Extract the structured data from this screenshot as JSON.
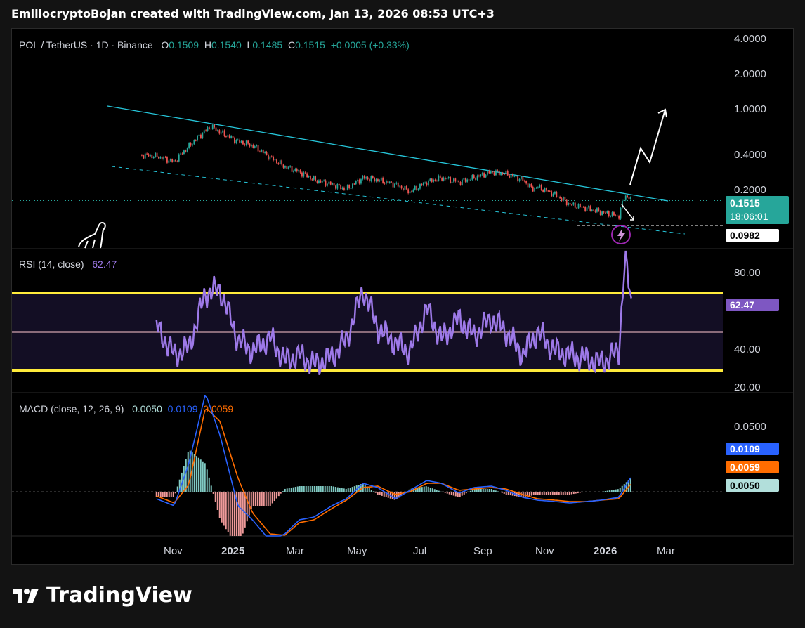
{
  "header": {
    "credit": "EmiliocryptoBojan created with TradingView.com, Jan 13, 2026 08:53 UTC+3"
  },
  "price_panel": {
    "symbol": "POL / TetherUS · 1D · Binance",
    "o_label": "O",
    "o": "0.1509",
    "h_label": "H",
    "h": "0.1540",
    "l_label": "L",
    "l": "0.1485",
    "c_label": "C",
    "c": "0.1515",
    "change": "+0.0005 (+0.33%)",
    "axis_ticks": [
      "4.0000",
      "2.0000",
      "1.0000",
      "0.4000",
      "0.2000"
    ],
    "last_price": "0.1515",
    "countdown": "18:06:01",
    "marker_price": "0.0982"
  },
  "rsi_panel": {
    "title": "RSI (14, close)",
    "value": "62.47",
    "axis_ticks": [
      "80.00",
      "40.00",
      "20.00"
    ],
    "badge": "62.47"
  },
  "macd_panel": {
    "title": "MACD (close, 12, 26, 9)",
    "hist": "0.0050",
    "macd": "0.0109",
    "signal": "0.0059",
    "axis_ticks": [
      "0.0500"
    ],
    "badges": [
      "0.0109",
      "0.0059",
      "0.0050"
    ]
  },
  "time_axis": [
    "Nov",
    "2025",
    "Mar",
    "May",
    "Jul",
    "Sep",
    "Nov",
    "2026",
    "Mar"
  ],
  "brand": {
    "name": "TradingView"
  },
  "colors": {
    "up": "#26a69a",
    "down": "#ef5350",
    "rsi": "#9d79e8",
    "band": "#ffeb3b",
    "trend": "#26c6da",
    "macd": "#2962ff",
    "signal": "#ff6d00"
  },
  "chart_data": [
    {
      "type": "line",
      "title": "POL / TetherUS · 1D · Binance",
      "scale": "log",
      "ylim": [
        0.09,
        4.0
      ],
      "x": [
        "2024-10-01",
        "2024-10-15",
        "2024-11-01",
        "2024-11-15",
        "2024-12-01",
        "2024-12-06",
        "2024-12-15",
        "2025-01-01",
        "2025-01-15",
        "2025-02-01",
        "2025-02-15",
        "2025-03-01",
        "2025-03-15",
        "2025-04-01",
        "2025-04-15",
        "2025-05-01",
        "2025-05-15",
        "2025-06-01",
        "2025-06-15",
        "2025-07-01",
        "2025-07-15",
        "2025-08-01",
        "2025-08-15",
        "2025-09-01",
        "2025-09-15",
        "2025-10-01",
        "2025-10-10",
        "2025-10-15",
        "2025-11-01",
        "2025-11-15",
        "2025-12-01",
        "2025-12-15",
        "2026-01-01",
        "2026-01-07",
        "2026-01-13"
      ],
      "series": [
        {
          "values": [
            0.38,
            0.37,
            0.33,
            0.45,
            0.62,
            0.68,
            0.6,
            0.5,
            0.46,
            0.36,
            0.3,
            0.27,
            0.23,
            0.21,
            0.19,
            0.24,
            0.23,
            0.21,
            0.18,
            0.22,
            0.24,
            0.22,
            0.24,
            0.27,
            0.26,
            0.23,
            0.19,
            0.2,
            0.17,
            0.14,
            0.13,
            0.12,
            0.11,
            0.17,
            0.1515
          ]
        }
      ]
    },
    {
      "type": "line",
      "title": "RSI (14, close)",
      "ylim": [
        20,
        100
      ],
      "x": [
        "2024-10-15",
        "2024-11-01",
        "2024-11-15",
        "2024-12-01",
        "2024-12-15",
        "2025-01-01",
        "2025-01-15",
        "2025-02-01",
        "2025-02-15",
        "2025-03-01",
        "2025-03-15",
        "2025-04-01",
        "2025-04-15",
        "2025-05-01",
        "2025-05-15",
        "2025-06-01",
        "2025-06-15",
        "2025-07-01",
        "2025-07-15",
        "2025-08-01",
        "2025-08-15",
        "2025-09-01",
        "2025-09-15",
        "2025-10-01",
        "2025-10-15",
        "2025-11-01",
        "2025-11-15",
        "2025-12-01",
        "2025-12-15",
        "2026-01-01",
        "2026-01-07",
        "2026-01-13"
      ],
      "series": [
        {
          "name": "RSI",
          "values": [
            53,
            38,
            42,
            70,
            72,
            46,
            40,
            47,
            35,
            38,
            33,
            37,
            46,
            72,
            52,
            44,
            40,
            62,
            46,
            57,
            48,
            57,
            50,
            38,
            50,
            40,
            38,
            36,
            34,
            40,
            90,
            62.47
          ]
        }
      ]
    },
    {
      "type": "line",
      "title": "MACD (close, 12, 26, 9)",
      "x": [
        "2024-10-15",
        "2024-11-01",
        "2024-11-15",
        "2024-12-01",
        "2024-12-15",
        "2025-01-01",
        "2025-01-15",
        "2025-02-01",
        "2025-02-15",
        "2025-03-01",
        "2025-03-15",
        "2025-04-01",
        "2025-04-15",
        "2025-05-01",
        "2025-05-15",
        "2025-06-01",
        "2025-06-15",
        "2025-07-01",
        "2025-07-15",
        "2025-08-01",
        "2025-08-15",
        "2025-09-01",
        "2025-09-15",
        "2025-10-01",
        "2025-10-15",
        "2025-11-01",
        "2025-11-15",
        "2025-12-01",
        "2025-12-15",
        "2026-01-01",
        "2026-01-13"
      ],
      "series": [
        {
          "name": "MACD",
          "values": [
            -0.005,
            -0.01,
            0.02,
            0.07,
            0.04,
            -0.01,
            -0.02,
            -0.035,
            -0.03,
            -0.02,
            -0.018,
            -0.01,
            -0.005,
            0.006,
            0.003,
            -0.005,
            0.001,
            0.008,
            0.006,
            -0.001,
            0.003,
            0.004,
            0.001,
            -0.004,
            -0.006,
            -0.007,
            -0.008,
            -0.007,
            -0.006,
            -0.004,
            0.0109
          ]
        },
        {
          "name": "Signal",
          "values": [
            -0.003,
            -0.008,
            0.005,
            0.06,
            0.05,
            0.01,
            -0.015,
            -0.03,
            -0.031,
            -0.022,
            -0.02,
            -0.012,
            -0.006,
            0.003,
            0.004,
            -0.002,
            0.0,
            0.006,
            0.006,
            0.001,
            0.002,
            0.003,
            0.002,
            -0.002,
            -0.005,
            -0.006,
            -0.007,
            -0.007,
            -0.006,
            -0.005,
            0.0059
          ]
        }
      ]
    }
  ]
}
